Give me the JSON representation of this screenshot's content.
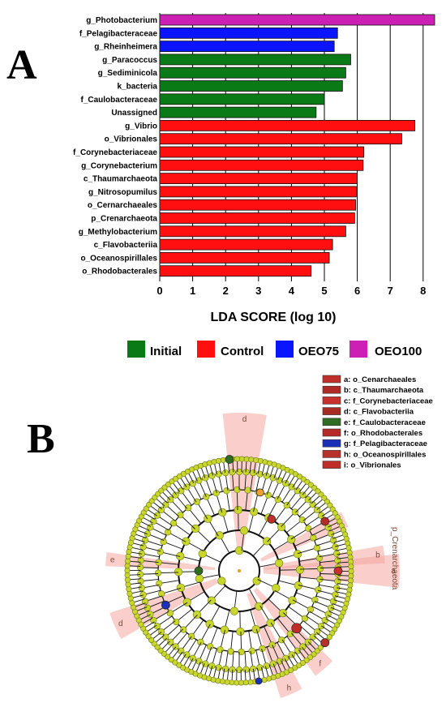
{
  "panels": {
    "a_letter": "A",
    "b_letter": "B"
  },
  "chart_data": [
    {
      "type": "bar",
      "orientation": "horizontal",
      "categories": [
        "g_Photobacterium",
        "f_Pelagibacteraceae",
        "g_Rheinheimera",
        "g_Paracoccus",
        "g_Sediminicola",
        "k_bacteria",
        "f_Caulobacteraceae",
        "Unassigned",
        "g_Vibrio",
        "o_Vibrionales",
        "f_Corynebacteriaceae",
        "g_Corynebacterium",
        "c_Thaumarchaeota",
        "g_Nitrosopumilus",
        "o_Cernarchaeales",
        "p_Crenarchaeota",
        "g_Methylobacterium",
        "c_Flavobacteriia",
        "o_Oceanospirillales",
        "o_Rhodobacterales"
      ],
      "values": [
        8.35,
        5.4,
        5.3,
        5.8,
        5.65,
        5.55,
        5.0,
        4.75,
        7.75,
        7.35,
        6.2,
        6.18,
        6.0,
        5.97,
        5.95,
        5.92,
        5.65,
        5.25,
        5.15,
        4.6
      ],
      "groups": [
        "OEO100",
        "OEO75",
        "OEO75",
        "Initial",
        "Initial",
        "Initial",
        "Initial",
        "Initial",
        "Control",
        "Control",
        "Control",
        "Control",
        "Control",
        "Control",
        "Control",
        "Control",
        "Control",
        "Control",
        "Control",
        "Control"
      ],
      "xlabel": "LDA SCORE (log 10)",
      "xticks": [
        "0",
        "1",
        "2",
        "3",
        "4",
        "5",
        "6",
        "7",
        "8"
      ],
      "xlim": [
        0,
        8.45
      ],
      "grid": "vertical",
      "legend_placement": "bottom",
      "legend": [
        {
          "name": "Initial",
          "color": "#0a7a16"
        },
        {
          "name": "Control",
          "color": "#ff0f0f"
        },
        {
          "name": "OEO75",
          "color": "#0a14ff"
        },
        {
          "name": "OEO100",
          "color": "#cc1fb3"
        }
      ]
    },
    {
      "type": "cladogram",
      "legend_placement": "top-right",
      "clade_legend": [
        {
          "text": "a: o_Cenarchaeales",
          "color": "#c0302a"
        },
        {
          "text": "b: c_Thaumarchaeota",
          "color": "#b02a26"
        },
        {
          "text": "c: f_Corynebacteriaceae",
          "color": "#c8302c"
        },
        {
          "text": "d: c_Flavobacteriia",
          "color": "#a82a24"
        },
        {
          "text": "e: f_Caulobacteraceae",
          "color": "#2f6e22"
        },
        {
          "text": "f: o_Rhodobacterales",
          "color": "#b82a28"
        },
        {
          "text": "g: f_Pelagibacteraceae",
          "color": "#1c2fb8"
        },
        {
          "text": "h: o_Oceanospirillales",
          "color": "#b8302a"
        },
        {
          "text": "i: o_Vibrionales",
          "color": "#c02c28"
        }
      ],
      "side_label": "p_Crenarchaeota",
      "sector_letters": [
        "d",
        "a",
        "b",
        "e",
        "d",
        "b",
        "h",
        "f"
      ]
    }
  ]
}
